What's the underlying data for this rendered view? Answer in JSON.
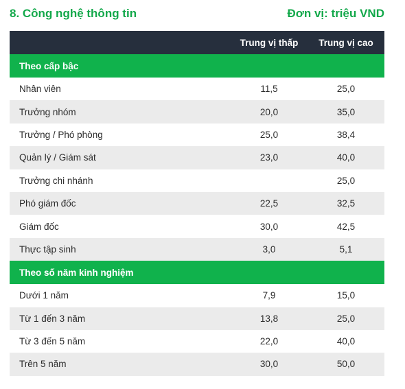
{
  "header": {
    "title": "8. Công nghệ thông tin",
    "unit": "Đơn vị: triệu VND"
  },
  "columns": {
    "label": "",
    "low": "Trung vị thấp",
    "high": "Trung vị cao"
  },
  "sections": [
    {
      "title": "Theo cấp bậc",
      "rows": [
        {
          "label": "Nhân viên",
          "low": "11,5",
          "high": "25,0"
        },
        {
          "label": "Trưởng nhóm",
          "low": "20,0",
          "high": "35,0"
        },
        {
          "label": "Trưởng / Phó phòng",
          "low": "25,0",
          "high": "38,4"
        },
        {
          "label": "Quản lý / Giám sát",
          "low": "23,0",
          "high": "40,0"
        },
        {
          "label": "Trưởng chi nhánh",
          "low": "",
          "high": "25,0"
        },
        {
          "label": "Phó giám đốc",
          "low": "22,5",
          "high": "32,5"
        },
        {
          "label": "Giám đốc",
          "low": "30,0",
          "high": "42,5"
        },
        {
          "label": "Thực tập sinh",
          "low": "3,0",
          "high": "5,1"
        }
      ]
    },
    {
      "title": "Theo số năm kinh nghiệm",
      "rows": [
        {
          "label": "Dưới 1 năm",
          "low": "7,9",
          "high": "15,0"
        },
        {
          "label": "Từ 1 đến 3 năm",
          "low": "13,8",
          "high": "25,0"
        },
        {
          "label": "Từ 3 đến 5 năm",
          "low": "22,0",
          "high": "40,0"
        },
        {
          "label": "Trên 5 năm",
          "low": "30,0",
          "high": "50,0"
        }
      ]
    }
  ]
}
